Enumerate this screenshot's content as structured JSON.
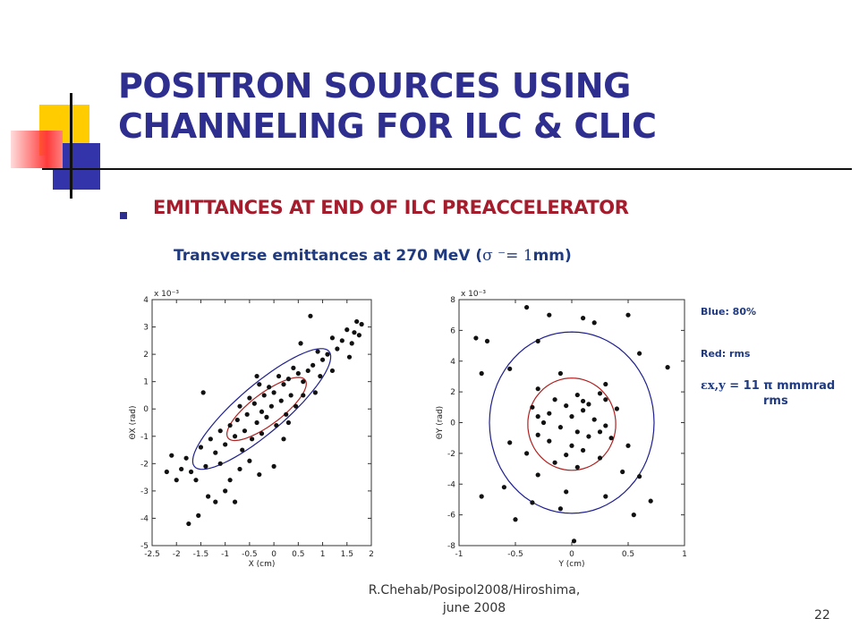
{
  "slide": {
    "title_line1": "POSITRON SOURCES USING",
    "title_line2": "CHANNELING FOR ILC & CLIC",
    "bullet": "EMITTANCES AT END OF ILC PREACCELERATOR",
    "subtitle_text": "Transverse emittances at 270 MeV (",
    "subtitle_sigma": "σ ⁻= 1",
    "subtitle_unit": "mm)",
    "footer_line1": "R.Chehab/Posipol2008/Hiroshima,",
    "footer_line2": "june 2008",
    "page_number": "22"
  },
  "legend": {
    "blue_label": "Blue: 80%",
    "red_label": "Red: rms",
    "emittance_symbol": "εx,y",
    "emittance_value": "= 11 π mmmrad",
    "emittance_unit": "rms"
  },
  "colors": {
    "title": "#2e2e8f",
    "bullet": "#a51d2d",
    "text_blue": "#1f3a80",
    "ellipse_80": "#1f1f8f",
    "ellipse_rms": "#b02020",
    "points": "#111111"
  },
  "chart_data": [
    {
      "type": "scatter",
      "xlabel": "X (cm)",
      "ylabel": "ΘX (rad)",
      "y_scale_label": "x 10⁻³",
      "xlim": [
        -2.5,
        2
      ],
      "ylim": [
        -5,
        4
      ],
      "xticks": [
        -2.5,
        -2,
        -1.5,
        -1,
        -0.5,
        0,
        0.5,
        1,
        1.5,
        2
      ],
      "xtick_labels": [
        "-2.5",
        "-2",
        "-1.5",
        "-1",
        "-0.5",
        "0",
        "0.5",
        "1",
        "1.5",
        "2"
      ],
      "yticks": [
        -5,
        -4,
        -3,
        -2,
        -1,
        0,
        1,
        2,
        3,
        4
      ],
      "ytick_labels": [
        "-5",
        "-4",
        "-3",
        "-2",
        "-1",
        "0",
        "1",
        "2",
        "3",
        "4"
      ],
      "ellipses": [
        {
          "name": "80%",
          "cx": -0.25,
          "cy": 0.0,
          "rx": 2.55,
          "ry": 0.62,
          "angle_deg": 59
        },
        {
          "name": "rms",
          "cx": -0.15,
          "cy": 0.0,
          "rx": 1.35,
          "ry": 0.42,
          "angle_deg": 57
        }
      ],
      "points": [
        [
          1.7,
          3.2
        ],
        [
          1.65,
          2.8
        ],
        [
          1.5,
          2.9
        ],
        [
          1.6,
          2.4
        ],
        [
          1.4,
          2.5
        ],
        [
          1.3,
          2.2
        ],
        [
          1.2,
          2.6
        ],
        [
          1.55,
          1.9
        ],
        [
          1.1,
          2.0
        ],
        [
          1.0,
          1.8
        ],
        [
          0.9,
          2.1
        ],
        [
          0.75,
          3.4
        ],
        [
          0.8,
          1.6
        ],
        [
          0.95,
          1.2
        ],
        [
          0.7,
          1.4
        ],
        [
          0.6,
          1.0
        ],
        [
          0.5,
          1.3
        ],
        [
          0.4,
          1.5
        ],
        [
          0.3,
          1.1
        ],
        [
          0.2,
          0.9
        ],
        [
          0.35,
          0.5
        ],
        [
          0.1,
          1.2
        ],
        [
          0.0,
          0.6
        ],
        [
          -0.1,
          0.8
        ],
        [
          -0.2,
          0.5
        ],
        [
          -0.3,
          0.9
        ],
        [
          -0.4,
          0.2
        ],
        [
          0.45,
          0.1
        ],
        [
          0.25,
          -0.2
        ],
        [
          0.15,
          0.3
        ],
        [
          -0.05,
          0.1
        ],
        [
          -0.15,
          -0.3
        ],
        [
          -0.25,
          -0.1
        ],
        [
          -0.35,
          -0.5
        ],
        [
          -0.5,
          0.4
        ],
        [
          -0.55,
          -0.2
        ],
        [
          -0.6,
          -0.8
        ],
        [
          -0.7,
          0.1
        ],
        [
          -0.75,
          -0.4
        ],
        [
          -0.8,
          -1.0
        ],
        [
          -0.9,
          -0.6
        ],
        [
          -1.0,
          -1.3
        ],
        [
          -0.65,
          -1.5
        ],
        [
          -0.45,
          -1.1
        ],
        [
          -0.25,
          -0.9
        ],
        [
          0.05,
          -0.6
        ],
        [
          0.2,
          -1.1
        ],
        [
          -1.1,
          -0.8
        ],
        [
          -1.2,
          -1.6
        ],
        [
          -1.3,
          -1.1
        ],
        [
          -1.4,
          -2.1
        ],
        [
          -1.5,
          -1.4
        ],
        [
          -1.6,
          -2.6
        ],
        [
          -1.7,
          -2.3
        ],
        [
          -1.8,
          -1.8
        ],
        [
          -1.9,
          -2.2
        ],
        [
          -2.0,
          -2.6
        ],
        [
          -2.1,
          -1.7
        ],
        [
          -2.2,
          -2.3
        ],
        [
          -1.35,
          -3.2
        ],
        [
          -1.2,
          -3.4
        ],
        [
          -1.0,
          -3.0
        ],
        [
          -0.9,
          -2.6
        ],
        [
          -0.7,
          -2.2
        ],
        [
          -0.5,
          -1.9
        ],
        [
          -0.3,
          -2.4
        ],
        [
          0.0,
          -2.1
        ],
        [
          -1.55,
          -3.9
        ],
        [
          -1.75,
          -4.2
        ],
        [
          -1.1,
          -2.0
        ],
        [
          -0.8,
          -3.4
        ],
        [
          0.3,
          -0.5
        ],
        [
          0.6,
          0.5
        ],
        [
          1.2,
          1.4
        ],
        [
          0.55,
          2.4
        ],
        [
          -0.35,
          1.2
        ],
        [
          -1.45,
          0.6
        ],
        [
          1.8,
          3.1
        ],
        [
          1.75,
          2.7
        ],
        [
          0.85,
          0.6
        ]
      ]
    },
    {
      "type": "scatter",
      "xlabel": "Y (cm)",
      "ylabel": "ΘY (rad)",
      "y_scale_label": "x 10⁻³",
      "xlim": [
        -1,
        1
      ],
      "ylim": [
        -8,
        8
      ],
      "xticks": [
        -1,
        -0.5,
        0,
        0.5,
        1
      ],
      "xtick_labels": [
        "-1",
        "-0.5",
        "0",
        "0.5",
        "1"
      ],
      "yticks": [
        -8,
        -6,
        -4,
        -2,
        0,
        2,
        4,
        6,
        8
      ],
      "ytick_labels": [
        "-8",
        "-6",
        "-4",
        "-2",
        "0",
        "2",
        "4",
        "6",
        "8"
      ],
      "ellipses": [
        {
          "name": "80%",
          "cx": 0.0,
          "cy": 0.0,
          "rx": 0.73,
          "ry": 5.9,
          "angle_deg": 0
        },
        {
          "name": "rms",
          "cx": 0.0,
          "cy": -0.1,
          "rx": 0.39,
          "ry": 3.0,
          "angle_deg": 0
        }
      ],
      "points": [
        [
          -0.4,
          7.5
        ],
        [
          -0.2,
          7.0
        ],
        [
          0.1,
          6.8
        ],
        [
          0.2,
          6.5
        ],
        [
          0.5,
          7.0
        ],
        [
          -0.75,
          5.3
        ],
        [
          -0.85,
          5.5
        ],
        [
          -0.3,
          5.3
        ],
        [
          -0.55,
          3.5
        ],
        [
          -0.8,
          3.2
        ],
        [
          0.6,
          4.5
        ],
        [
          0.85,
          3.6
        ],
        [
          -0.1,
          3.2
        ],
        [
          0.3,
          2.5
        ],
        [
          -0.3,
          2.2
        ],
        [
          0.05,
          1.8
        ],
        [
          -0.15,
          1.5
        ],
        [
          0.15,
          1.2
        ],
        [
          0.25,
          1.9
        ],
        [
          -0.35,
          1.0
        ],
        [
          0.4,
          0.9
        ],
        [
          -0.2,
          0.6
        ],
        [
          0.0,
          0.4
        ],
        [
          0.1,
          0.8
        ],
        [
          -0.05,
          1.1
        ],
        [
          0.2,
          0.2
        ],
        [
          -0.25,
          0.0
        ],
        [
          0.3,
          -0.2
        ],
        [
          -0.1,
          -0.3
        ],
        [
          0.05,
          -0.6
        ],
        [
          0.15,
          -0.9
        ],
        [
          -0.3,
          -0.8
        ],
        [
          0.35,
          -1.0
        ],
        [
          -0.2,
          -1.2
        ],
        [
          0.0,
          -1.5
        ],
        [
          0.1,
          -1.8
        ],
        [
          -0.4,
          -2.0
        ],
        [
          0.25,
          -2.3
        ],
        [
          -0.15,
          -2.6
        ],
        [
          0.05,
          -2.9
        ],
        [
          0.5,
          -1.5
        ],
        [
          -0.55,
          -1.3
        ],
        [
          0.45,
          -3.2
        ],
        [
          0.6,
          -3.5
        ],
        [
          -0.3,
          -3.4
        ],
        [
          -0.6,
          -4.2
        ],
        [
          -0.05,
          -4.5
        ],
        [
          0.3,
          -4.8
        ],
        [
          -0.8,
          -4.8
        ],
        [
          0.7,
          -5.1
        ],
        [
          -0.35,
          -5.2
        ],
        [
          -0.1,
          -5.6
        ],
        [
          0.55,
          -6.0
        ],
        [
          0.02,
          -7.7
        ],
        [
          -0.5,
          -6.3
        ],
        [
          0.1,
          1.4
        ],
        [
          -0.3,
          0.4
        ],
        [
          0.25,
          -0.6
        ],
        [
          -0.05,
          -2.1
        ],
        [
          0.3,
          1.5
        ]
      ]
    }
  ]
}
